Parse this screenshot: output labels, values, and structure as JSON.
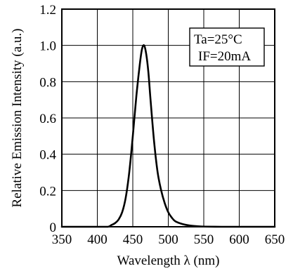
{
  "chart_data": {
    "type": "line",
    "xlabel": "Wavelength λ (nm)",
    "ylabel": "Relative Emission Intensity (a.u.)",
    "xlim": [
      350,
      650
    ],
    "ylim": [
      0,
      1.2
    ],
    "xticks": [
      350,
      400,
      450,
      500,
      550,
      600,
      650
    ],
    "yticks": [
      0,
      0.2,
      0.4,
      0.6,
      0.8,
      1.0,
      1.2
    ],
    "xtick_labels": [
      "350",
      "400",
      "450",
      "500",
      "550",
      "600",
      "650"
    ],
    "ytick_labels": [
      "0",
      "0.2",
      "0.4",
      "0.6",
      "0.8",
      "1.0",
      "1.2"
    ],
    "grid": true,
    "legend_position": "top-right",
    "annotation": {
      "line1": "Ta=25°C",
      "line2": "IF=20mA"
    },
    "series": [
      {
        "x": [
          350,
          400,
          415,
          420,
          425,
          430,
          435,
          440,
          445,
          450,
          455,
          460,
          463,
          466,
          469,
          472,
          475,
          480,
          485,
          490,
          495,
          500,
          505,
          510,
          520,
          530,
          540,
          550,
          575,
          600,
          650
        ],
        "values": [
          0,
          0,
          0.0,
          0.01,
          0.02,
          0.04,
          0.08,
          0.16,
          0.3,
          0.5,
          0.72,
          0.9,
          0.98,
          1.0,
          0.95,
          0.85,
          0.7,
          0.47,
          0.3,
          0.2,
          0.13,
          0.08,
          0.05,
          0.03,
          0.015,
          0.007,
          0.003,
          0.001,
          0,
          0,
          0
        ]
      }
    ]
  }
}
